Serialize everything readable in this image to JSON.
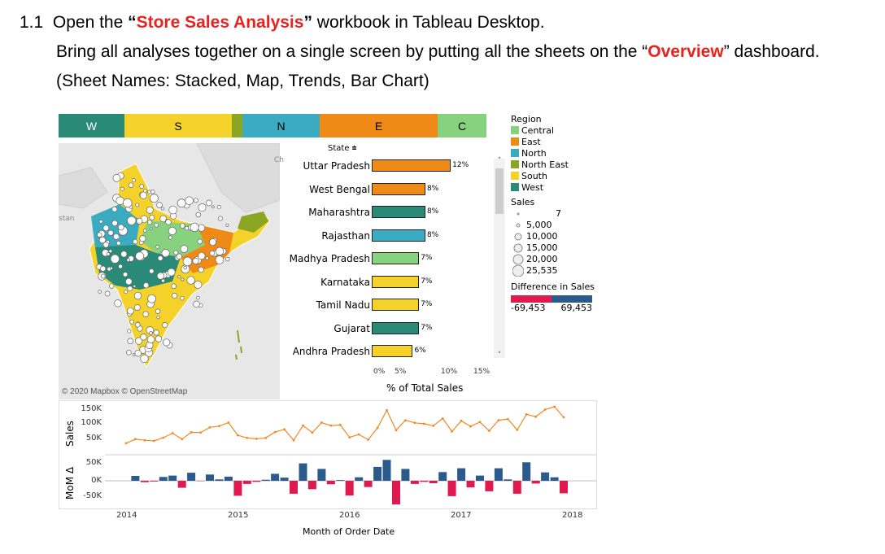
{
  "question": {
    "number": "1.1",
    "line1_pre": "Open the ",
    "line1_quote_open": "“",
    "line1_highlight": "Store Sales Analysis",
    "line1_quote_close": "”",
    "line1_post": " workbook in Tableau Desktop.",
    "line2_pre": "Bring all analyses together on a single screen by putting all the sheets on the “",
    "line2_highlight": "Overview",
    "line2_post": "” dashboard.",
    "line3": "(Sheet Names: Stacked, Map, Trends, Bar Chart)"
  },
  "colors": {
    "central": "#86d27f",
    "east": "#ef8a17",
    "north": "#3aabc1",
    "north_east": "#8aa624",
    "south": "#f5d229",
    "west": "#2a8a78",
    "highlight": "#e8231f",
    "negative": "#e01a4f",
    "positive": "#2b5a8c",
    "trend_line": "#f08a24"
  },
  "region_bar": [
    {
      "label": "W",
      "color": "#2a8a78"
    },
    {
      "label": "S",
      "color": "#f5d229"
    },
    {
      "label": "",
      "color": "#8aa624"
    },
    {
      "label": "N",
      "color": "#3aabc1"
    },
    {
      "label": "E",
      "color": "#ef8a17"
    },
    {
      "label": "C",
      "color": "#86d27f"
    }
  ],
  "map": {
    "credit": "© 2020 Mapbox © OpenStreetMap",
    "fragment_label": "stan",
    "ch_label": "Ch"
  },
  "chart_data": [
    {
      "type": "bar",
      "header": "State",
      "xlabel": "% of Total Sales",
      "x_ticks": [
        "0%",
        "5%",
        "10%",
        "15%"
      ],
      "xlim": [
        0,
        15
      ],
      "categories": [
        "Uttar Pradesh",
        "West Bengal",
        "Maharashtra",
        "Rajasthan",
        "Madhya Pradesh",
        "Karnataka",
        "Tamil Nadu",
        "Gujarat",
        "Andhra Pradesh"
      ],
      "values": [
        12,
        8,
        8,
        8,
        7,
        7,
        7,
        7,
        6
      ],
      "value_labels": [
        "12%",
        "8%",
        "8%",
        "8%",
        "7%",
        "7%",
        "7%",
        "7%",
        "6%"
      ],
      "regions": [
        "East",
        "East",
        "West",
        "North",
        "Central",
        "South",
        "South",
        "West",
        "South"
      ]
    },
    {
      "type": "line",
      "ylabel": "Sales",
      "y_ticks": [
        "150K",
        "100K",
        "50K"
      ],
      "ylim": [
        0,
        160000
      ],
      "x_ticks": [
        "2014",
        "2015",
        "2016",
        "2017",
        "2018"
      ],
      "xlabel": "Month of Order Date",
      "x": [
        "2014-01",
        "2014-02",
        "2014-03",
        "2014-04",
        "2014-05",
        "2014-06",
        "2014-07",
        "2014-08",
        "2014-09",
        "2014-10",
        "2014-11",
        "2014-12",
        "2015-01",
        "2015-02",
        "2015-03",
        "2015-04",
        "2015-05",
        "2015-06",
        "2015-07",
        "2015-08",
        "2015-09",
        "2015-10",
        "2015-11",
        "2015-12",
        "2016-01",
        "2016-02",
        "2016-03",
        "2016-04",
        "2016-05",
        "2016-06",
        "2016-07",
        "2016-08",
        "2016-09",
        "2016-10",
        "2016-11",
        "2016-12",
        "2017-01",
        "2017-02",
        "2017-03",
        "2017-04",
        "2017-05",
        "2017-06",
        "2017-07",
        "2017-08",
        "2017-09",
        "2017-10",
        "2017-11",
        "2017-12"
      ],
      "values": [
        28000,
        42000,
        38000,
        36000,
        47000,
        62000,
        42000,
        65000,
        64000,
        82000,
        86000,
        98000,
        55000,
        46000,
        43000,
        46000,
        66000,
        75000,
        38000,
        88000,
        64000,
        98000,
        88000,
        90000,
        48000,
        58000,
        40000,
        80000,
        140000,
        72000,
        106000,
        97000,
        94000,
        87000,
        112000,
        68000,
        104000,
        85000,
        100000,
        70000,
        106000,
        110000,
        73000,
        126000,
        118000,
        142000,
        152000,
        116000
      ]
    },
    {
      "type": "bar",
      "ylabel": "MoM Δ",
      "y_ticks": [
        "50K",
        "0K",
        "-50K"
      ],
      "ylim": [
        -75000,
        75000
      ],
      "x": [
        "2014-01",
        "2014-02",
        "2014-03",
        "2014-04",
        "2014-05",
        "2014-06",
        "2014-07",
        "2014-08",
        "2014-09",
        "2014-10",
        "2014-11",
        "2014-12",
        "2015-01",
        "2015-02",
        "2015-03",
        "2015-04",
        "2015-05",
        "2015-06",
        "2015-07",
        "2015-08",
        "2015-09",
        "2015-10",
        "2015-11",
        "2015-12",
        "2016-01",
        "2016-02",
        "2016-03",
        "2016-04",
        "2016-05",
        "2016-06",
        "2016-07",
        "2016-08",
        "2016-09",
        "2016-10",
        "2016-11",
        "2016-12",
        "2017-01",
        "2017-02",
        "2017-03",
        "2017-04",
        "2017-05",
        "2017-06",
        "2017-07",
        "2017-08",
        "2017-09",
        "2017-10",
        "2017-11",
        "2017-12"
      ],
      "values": [
        0,
        14000,
        -4000,
        -2000,
        11000,
        15000,
        -20000,
        23000,
        -1000,
        18000,
        4000,
        12000,
        -43000,
        -9000,
        -3000,
        3000,
        20000,
        9000,
        -37000,
        50000,
        -24000,
        34000,
        -10000,
        2000,
        -42000,
        10000,
        -18000,
        40000,
        60000,
        -68000,
        34000,
        -9000,
        -3000,
        -7000,
        25000,
        -44000,
        36000,
        -19000,
        15000,
        -30000,
        36000,
        4000,
        -37000,
        53000,
        -8000,
        24000,
        10000,
        -36000
      ]
    }
  ],
  "legend": {
    "region_title": "Region",
    "regions": [
      {
        "label": "Central",
        "color": "#86d27f"
      },
      {
        "label": "East",
        "color": "#ef8a17"
      },
      {
        "label": "North",
        "color": "#3aabc1"
      },
      {
        "label": "North East",
        "color": "#8aa624"
      },
      {
        "label": "South",
        "color": "#f5d229"
      },
      {
        "label": "West",
        "color": "#2a8a78"
      }
    ],
    "sales_title": "Sales",
    "sales_sizes": [
      "7",
      "5,000",
      "10,000",
      "15,000",
      "20,000",
      "25,535"
    ],
    "diff_title": "Difference in Sales",
    "diff_min": "-69,453",
    "diff_max": "69,453"
  }
}
